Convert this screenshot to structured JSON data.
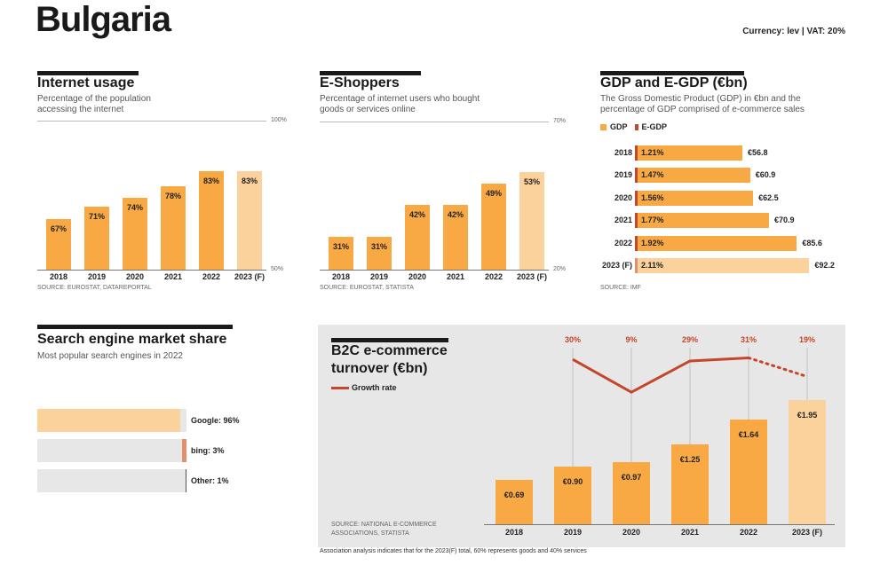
{
  "header": {
    "title": "Bulgaria",
    "currency": "Currency: lev | VAT: 20%"
  },
  "colors": {
    "bar": "#f8a944",
    "forecast": "#fcd29c",
    "egdp": "#c5462a",
    "growth": "#c5462a",
    "track": "#e7e7e8"
  },
  "chart_data": [
    {
      "id": "internet",
      "type": "bar",
      "title": "Internet usage",
      "subtitle": "Percentage of the population accessing the internet",
      "categories": [
        "2018",
        "2019",
        "2020",
        "2021",
        "2022",
        "2023 (F)"
      ],
      "values": [
        67,
        71,
        74,
        78,
        83,
        83
      ],
      "labels": [
        "67%",
        "71%",
        "74%",
        "78%",
        "83%",
        "83%"
      ],
      "ylim": [
        50,
        100
      ],
      "ytick_labels": [
        "100%",
        "50%"
      ],
      "forecast_index": 5,
      "source": "SOURCE: EUROSTAT, DATAREPORTAL"
    },
    {
      "id": "eshoppers",
      "type": "bar",
      "title": "E-Shoppers",
      "subtitle": "Percentage of internet users who bought goods or services online",
      "categories": [
        "2018",
        "2019",
        "2020",
        "2021",
        "2022",
        "2023 (F)"
      ],
      "values": [
        31,
        31,
        42,
        42,
        49,
        53
      ],
      "labels": [
        "31%",
        "31%",
        "42%",
        "42%",
        "49%",
        "53%"
      ],
      "ylim": [
        20,
        70
      ],
      "ytick_labels": [
        "70%",
        "20%"
      ],
      "forecast_index": 5,
      "source": "SOURCE: EUROSTAT, STATISTA"
    },
    {
      "id": "gdp",
      "type": "bar",
      "orientation": "horizontal",
      "title": "GDP and E-GDP (€bn)",
      "subtitle": "The Gross Domestic Product (GDP) in €bn and the percentage of GDP comprised of e-commerce sales",
      "legend": [
        "GDP",
        "E-GDP"
      ],
      "categories": [
        "2018",
        "2019",
        "2020",
        "2021",
        "2022",
        "2023 (F)"
      ],
      "gdp": [
        56.8,
        60.9,
        62.5,
        70.9,
        85.6,
        92.2
      ],
      "gdp_labels": [
        "€56.8",
        "€60.9",
        "€62.5",
        "€70.9",
        "€85.6",
        "€92.2"
      ],
      "egdp_pct": [
        1.21,
        1.47,
        1.56,
        1.77,
        1.92,
        2.11
      ],
      "egdp_labels": [
        "1.21%",
        "1.47%",
        "1.56%",
        "1.77%",
        "1.92%",
        "2.11%"
      ],
      "forecast_index": 5,
      "source": "SOURCE: IMF"
    },
    {
      "id": "search",
      "type": "bar",
      "orientation": "horizontal",
      "title": "Search engine market share",
      "subtitle": "Most popular search engines in 2022",
      "categories": [
        "Google",
        "bing",
        "Other"
      ],
      "values": [
        96,
        3,
        1
      ],
      "labels": [
        "Google: 96%",
        "bing: 3%",
        "Other: 1%"
      ],
      "colors": [
        "#fcd29c",
        "#e0906a",
        "#555555"
      ]
    },
    {
      "id": "b2c",
      "type": "bar+line",
      "title": "B2C e-commerce turnover (€bn)",
      "legend": "Growth rate",
      "categories": [
        "2018",
        "2019",
        "2020",
        "2021",
        "2022",
        "2023 (F)"
      ],
      "values": [
        0.69,
        0.9,
        0.97,
        1.25,
        1.64,
        1.95
      ],
      "labels": [
        "€0.69",
        "€0.90",
        "€0.97",
        "€1.25",
        "€1.64",
        "€1.95"
      ],
      "growth": [
        null,
        30,
        9,
        29,
        31,
        19
      ],
      "growth_labels": [
        "",
        "30%",
        "9%",
        "29%",
        "31%",
        "19%"
      ],
      "forecast_index": 5,
      "source": "SOURCE: NATIONAL E-COMMERCE ASSOCIATIONS, STATISTA"
    }
  ],
  "footnote": "Association analysis indicates that for the 2023(F) total, 60% represents goods and 40% services"
}
